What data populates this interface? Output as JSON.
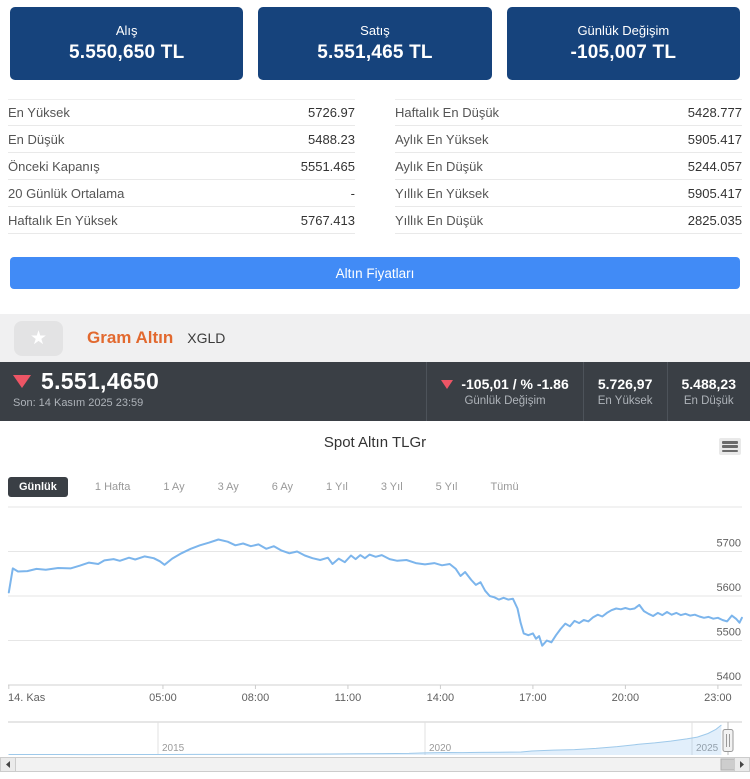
{
  "price_cards": [
    {
      "label": "Alış",
      "value": "5.550,650 TL"
    },
    {
      "label": "Satış",
      "value": "5.551,465 TL"
    },
    {
      "label": "Günlük Değişim",
      "value": "-105,007 TL"
    }
  ],
  "stats": {
    "left": [
      {
        "label": "En Yüksek",
        "value": "5726.97"
      },
      {
        "label": "En Düşük",
        "value": "5488.23"
      },
      {
        "label": "Önceki Kapanış",
        "value": "5551.465"
      },
      {
        "label": "20 Günlük Ortalama",
        "value": "-"
      },
      {
        "label": "Haftalık En Yüksek",
        "value": "5767.413"
      }
    ],
    "right": [
      {
        "label": "Haftalık En Düşük",
        "value": "5428.777"
      },
      {
        "label": "Aylık En Yüksek",
        "value": "5905.417"
      },
      {
        "label": "Aylık En Düşük",
        "value": "5244.057"
      },
      {
        "label": "Yıllık En Yüksek",
        "value": "5905.417"
      },
      {
        "label": "Yıllık En Düşük",
        "value": "2825.035"
      }
    ]
  },
  "prices_button_label": "Altın Fiyatları",
  "asset": {
    "star": "★",
    "name": "Gram Altın",
    "code": "XGLD"
  },
  "ticker": {
    "price": "5.551,4650",
    "last_update": "Son: 14 Kasım 2025 23:59",
    "change_value": "-105,01 / % -1.86",
    "change_label": "Günlük Değişim",
    "high_value": "5.726,97",
    "high_label": "En Yüksek",
    "low_value": "5.488,23",
    "low_label": "En Düşük",
    "down_color": "#ed5565"
  },
  "chart": {
    "title": "Spot Altın TLGr",
    "ranges": [
      "Günlük",
      "1 Hafta",
      "1 Ay",
      "3 Ay",
      "6 Ay",
      "1 Yıl",
      "3 Yıl",
      "5 Yıl",
      "Tümü"
    ],
    "active_range": "Günlük"
  },
  "chart_data": {
    "type": "line",
    "title": "Spot Altın TLGr",
    "line_color": "#7cb5ec",
    "grid_color": "#e6e6e6",
    "ylim": [
      5390,
      5800
    ],
    "y_ticks": [
      5400,
      5500,
      5600,
      5700
    ],
    "x_ticks": [
      {
        "h": 0,
        "label": "14. Kas"
      },
      {
        "h": 5,
        "label": "05:00"
      },
      {
        "h": 8,
        "label": "08:00"
      },
      {
        "h": 11,
        "label": "11:00"
      },
      {
        "h": 14,
        "label": "14:00"
      },
      {
        "h": 17,
        "label": "17:00"
      },
      {
        "h": 20,
        "label": "20:00"
      },
      {
        "h": 23,
        "label": "23:00"
      }
    ],
    "series": [
      {
        "name": "Spot Altın TLGr",
        "points": [
          [
            0,
            5608
          ],
          [
            0.13,
            5662
          ],
          [
            0.3,
            5655
          ],
          [
            0.6,
            5656
          ],
          [
            0.9,
            5661
          ],
          [
            1.2,
            5659
          ],
          [
            1.6,
            5663
          ],
          [
            2,
            5662
          ],
          [
            2.3,
            5668
          ],
          [
            2.6,
            5675
          ],
          [
            2.9,
            5672
          ],
          [
            3.1,
            5680
          ],
          [
            3.4,
            5683
          ],
          [
            3.6,
            5679
          ],
          [
            3.9,
            5686
          ],
          [
            4.1,
            5682
          ],
          [
            4.4,
            5689
          ],
          [
            4.7,
            5685
          ],
          [
            4.9,
            5678
          ],
          [
            5.05,
            5670
          ],
          [
            5.3,
            5684
          ],
          [
            5.6,
            5696
          ],
          [
            5.9,
            5706
          ],
          [
            6.2,
            5714
          ],
          [
            6.5,
            5720
          ],
          [
            6.8,
            5726.97
          ],
          [
            7.1,
            5722
          ],
          [
            7.35,
            5714
          ],
          [
            7.6,
            5718
          ],
          [
            7.85,
            5712
          ],
          [
            8.1,
            5716
          ],
          [
            8.35,
            5706
          ],
          [
            8.6,
            5712
          ],
          [
            8.85,
            5702
          ],
          [
            9.1,
            5696
          ],
          [
            9.35,
            5700
          ],
          [
            9.6,
            5691
          ],
          [
            9.85,
            5685
          ],
          [
            10.1,
            5681
          ],
          [
            10.35,
            5686
          ],
          [
            10.5,
            5672
          ],
          [
            10.7,
            5684
          ],
          [
            10.9,
            5676
          ],
          [
            11.1,
            5691
          ],
          [
            11.25,
            5683
          ],
          [
            11.4,
            5692
          ],
          [
            11.55,
            5685
          ],
          [
            11.7,
            5693
          ],
          [
            11.9,
            5688
          ],
          [
            12.1,
            5692
          ],
          [
            12.35,
            5683
          ],
          [
            12.6,
            5679
          ],
          [
            12.9,
            5681
          ],
          [
            13.2,
            5674
          ],
          [
            13.5,
            5671
          ],
          [
            13.8,
            5674
          ],
          [
            14.05,
            5669
          ],
          [
            14.3,
            5672
          ],
          [
            14.5,
            5661
          ],
          [
            14.65,
            5645
          ],
          [
            14.8,
            5654
          ],
          [
            15,
            5636
          ],
          [
            15.15,
            5625
          ],
          [
            15.3,
            5631
          ],
          [
            15.45,
            5612
          ],
          [
            15.6,
            5600
          ],
          [
            15.75,
            5597
          ],
          [
            15.9,
            5592
          ],
          [
            16.05,
            5596
          ],
          [
            16.2,
            5592
          ],
          [
            16.35,
            5594
          ],
          [
            16.5,
            5572
          ],
          [
            16.6,
            5540
          ],
          [
            16.7,
            5516
          ],
          [
            16.85,
            5512
          ],
          [
            17,
            5516
          ],
          [
            17.1,
            5504
          ],
          [
            17.2,
            5510
          ],
          [
            17.3,
            5488.23
          ],
          [
            17.45,
            5500
          ],
          [
            17.6,
            5496
          ],
          [
            17.75,
            5512
          ],
          [
            17.9,
            5526
          ],
          [
            18.05,
            5538
          ],
          [
            18.2,
            5532
          ],
          [
            18.35,
            5544
          ],
          [
            18.5,
            5539
          ],
          [
            18.65,
            5546
          ],
          [
            18.8,
            5543
          ],
          [
            18.95,
            5552
          ],
          [
            19.1,
            5558
          ],
          [
            19.25,
            5554
          ],
          [
            19.4,
            5562
          ],
          [
            19.55,
            5568
          ],
          [
            19.7,
            5572
          ],
          [
            19.85,
            5570
          ],
          [
            20,
            5573
          ],
          [
            20.15,
            5570
          ],
          [
            20.3,
            5572
          ],
          [
            20.45,
            5580
          ],
          [
            20.6,
            5566
          ],
          [
            20.75,
            5560
          ],
          [
            20.9,
            5555
          ],
          [
            21.05,
            5562
          ],
          [
            21.2,
            5557
          ],
          [
            21.35,
            5564
          ],
          [
            21.5,
            5558
          ],
          [
            21.65,
            5562
          ],
          [
            21.8,
            5557
          ],
          [
            21.95,
            5560
          ],
          [
            22.1,
            5556
          ],
          [
            22.25,
            5558
          ],
          [
            22.4,
            5554
          ],
          [
            22.55,
            5551
          ],
          [
            22.7,
            5553
          ],
          [
            22.85,
            5549
          ],
          [
            23,
            5551
          ],
          [
            23.15,
            5546
          ],
          [
            23.3,
            5543
          ],
          [
            23.45,
            5556
          ],
          [
            23.6,
            5548
          ],
          [
            23.7,
            5540
          ],
          [
            23.78,
            5551
          ]
        ]
      }
    ],
    "navigator": {
      "x_ticks": [
        2015,
        2020,
        2025
      ],
      "points": [
        [
          2012.2,
          92
        ],
        [
          2012.7,
          88
        ],
        [
          2013.2,
          84
        ],
        [
          2013.7,
          82
        ],
        [
          2014.2,
          86
        ],
        [
          2014.7,
          92
        ],
        [
          2015.2,
          98
        ],
        [
          2015.7,
          104
        ],
        [
          2016.2,
          116
        ],
        [
          2016.7,
          124
        ],
        [
          2017.2,
          146
        ],
        [
          2017.7,
          158
        ],
        [
          2018.2,
          192
        ],
        [
          2018.7,
          228
        ],
        [
          2019.2,
          262
        ],
        [
          2019.7,
          298
        ],
        [
          2020,
          380
        ],
        [
          2020.4,
          460
        ],
        [
          2020.7,
          452
        ],
        [
          2021,
          480
        ],
        [
          2021.4,
          510
        ],
        [
          2021.8,
          560
        ],
        [
          2022,
          740
        ],
        [
          2022.4,
          900
        ],
        [
          2022.8,
          990
        ],
        [
          2023.2,
          1220
        ],
        [
          2023.6,
          1560
        ],
        [
          2024,
          1980
        ],
        [
          2024.3,
          2240
        ],
        [
          2024.6,
          2580
        ],
        [
          2024.9,
          2980
        ],
        [
          2025.1,
          3320
        ],
        [
          2025.3,
          3980
        ],
        [
          2025.45,
          4750
        ],
        [
          2025.55,
          5551
        ]
      ]
    }
  }
}
